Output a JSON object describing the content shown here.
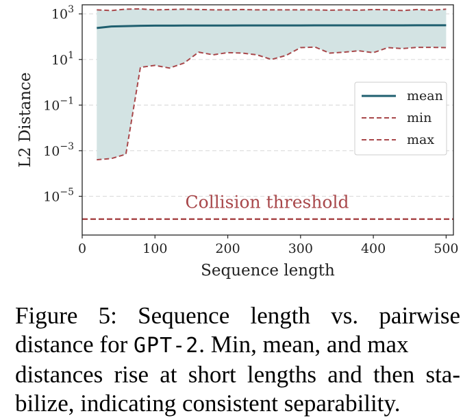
{
  "colors": {
    "mean": "#1f5f6f",
    "band": "#d3e3e3",
    "minmax": "#a8474a",
    "threshold": "#a8474a",
    "grid": "#dddddd"
  },
  "chart_data": {
    "type": "line",
    "xlabel": "Sequence length",
    "ylabel": "L2 Distance",
    "y_scale": "log",
    "xlim": [
      0,
      510
    ],
    "ylim": [
      2e-07,
      2500
    ],
    "grid": "horizontal dashed",
    "x_ticks": [
      0,
      100,
      200,
      300,
      400,
      500
    ],
    "x_tick_labels": [
      "0",
      "100",
      "200",
      "300",
      "400",
      "500"
    ],
    "y_ticks": [
      1e-05,
      0.001,
      0.1,
      10,
      1000
    ],
    "y_tick_labels": [
      {
        "base": "10",
        "exp": "−5"
      },
      {
        "base": "10",
        "exp": "−3"
      },
      {
        "base": "10",
        "exp": "−1"
      },
      {
        "base": "10",
        "exp": "1"
      },
      {
        "base": "10",
        "exp": "3"
      }
    ],
    "legend": {
      "placement": "right",
      "entries": [
        "mean",
        "min",
        "max"
      ]
    },
    "x": [
      20,
      40,
      60,
      80,
      100,
      120,
      140,
      160,
      180,
      200,
      220,
      240,
      260,
      280,
      300,
      320,
      340,
      360,
      380,
      400,
      420,
      440,
      460,
      480,
      500
    ],
    "series": [
      {
        "name": "mean",
        "style": "solid",
        "values": [
          240,
          280,
          290,
          300,
          305,
          305,
          308,
          310,
          310,
          310,
          312,
          312,
          312,
          312,
          312,
          313,
          313,
          313,
          314,
          314,
          314,
          314,
          315,
          315,
          315
        ]
      },
      {
        "name": "min",
        "style": "dashed",
        "values": [
          0.0004,
          0.00045,
          0.0007,
          4.5,
          5.5,
          4.2,
          7,
          21,
          16,
          20,
          19,
          16,
          10,
          15,
          33,
          35,
          19,
          21,
          24,
          20,
          33,
          30,
          34,
          34,
          33
        ]
      },
      {
        "name": "max",
        "style": "dashed",
        "values": [
          1500,
          1400,
          1600,
          1650,
          1500,
          1550,
          1600,
          1550,
          1500,
          1500,
          1550,
          1500,
          1500,
          1500,
          1500,
          1500,
          1450,
          1500,
          1450,
          1550,
          1500,
          1400,
          1550,
          1450,
          1600
        ]
      }
    ],
    "threshold": {
      "label": "Collision threshold",
      "value": 1e-06
    }
  },
  "caption": {
    "line1": "Figure 5:  Sequence length vs.  pairwise",
    "line2_pre": "distance for ",
    "line2_code": "GPT-2",
    "line2_post": ". Min, mean, and max",
    "line3": "distances rise at short lengths and then sta-",
    "line4": "bilize, indicating consistent separability."
  }
}
